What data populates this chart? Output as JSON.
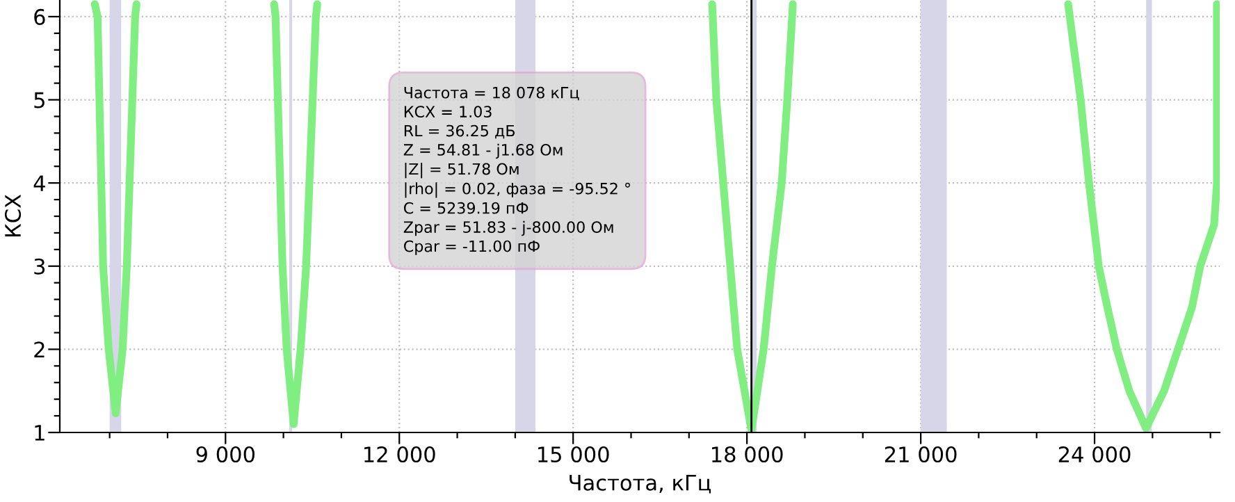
{
  "chart_data": {
    "type": "line",
    "xlabel": "Частота, кГц",
    "ylabel": "КСХ",
    "xlim": [
      6140,
      26160
    ],
    "ylim": [
      1,
      6.2
    ],
    "xticks": [
      {
        "value": 7000,
        "label": null
      },
      {
        "value": 8000,
        "label": null
      },
      {
        "value": 9000,
        "label": "9 000"
      },
      {
        "value": 10000,
        "label": null
      },
      {
        "value": 11000,
        "label": null
      },
      {
        "value": 12000,
        "label": "12 000"
      },
      {
        "value": 13000,
        "label": null
      },
      {
        "value": 14000,
        "label": null
      },
      {
        "value": 15000,
        "label": "15 000"
      },
      {
        "value": 16000,
        "label": null
      },
      {
        "value": 17000,
        "label": null
      },
      {
        "value": 18000,
        "label": "18 000"
      },
      {
        "value": 19000,
        "label": null
      },
      {
        "value": 20000,
        "label": null
      },
      {
        "value": 21000,
        "label": "21 000"
      },
      {
        "value": 22000,
        "label": null
      },
      {
        "value": 23000,
        "label": null
      },
      {
        "value": 24000,
        "label": "24 000"
      },
      {
        "value": 25000,
        "label": null
      },
      {
        "value": 26000,
        "label": null
      }
    ],
    "yticks": [
      1,
      {
        "value": 1.2,
        "label": null
      },
      {
        "value": 1.4,
        "label": null
      },
      {
        "value": 1.6,
        "label": null
      },
      {
        "value": 1.8,
        "label": null
      },
      2,
      {
        "value": 2.2,
        "label": null
      },
      {
        "value": 2.4,
        "label": null
      },
      {
        "value": 2.6,
        "label": null
      },
      {
        "value": 2.8,
        "label": null
      },
      3,
      {
        "value": 3.2,
        "label": null
      },
      {
        "value": 3.4,
        "label": null
      },
      {
        "value": 3.6,
        "label": null
      },
      {
        "value": 3.8,
        "label": null
      },
      4,
      {
        "value": 4.2,
        "label": null
      },
      {
        "value": 4.4,
        "label": null
      },
      {
        "value": 4.6,
        "label": null
      },
      {
        "value": 4.8,
        "label": null
      },
      5,
      {
        "value": 5.2,
        "label": null
      },
      {
        "value": 5.4,
        "label": null
      },
      {
        "value": 5.6,
        "label": null
      },
      {
        "value": 5.8,
        "label": null
      },
      6
    ],
    "grid": true,
    "line_style": "solid",
    "series": [
      {
        "color": "#80ee80",
        "x": [
          6744,
          6792,
          6888,
          6984,
          7104,
          7224,
          7296,
          7440,
          7464,
          7470,
          9840,
          9864,
          9984,
          10056,
          10176,
          10296,
          10392,
          10560,
          10584,
          10590,
          17400,
          17472,
          17712,
          17832,
          18078,
          18288,
          18432,
          18600,
          18696,
          18792,
          18800,
          23544,
          23760,
          23904,
          24072,
          24192,
          24384,
          24600,
          24888,
          25200,
          25440,
          25680,
          25824,
          26064,
          26112,
          26112
        ],
        "values": [
          6.15,
          6,
          3,
          2,
          1.23,
          2,
          3,
          6,
          6.15,
          null,
          6.15,
          6,
          3,
          2,
          1.1,
          2,
          3,
          6,
          6.15,
          null,
          6.15,
          5,
          3,
          2,
          1.03,
          2,
          3,
          4,
          5,
          6.15,
          null,
          6.15,
          5,
          4,
          3,
          2.6,
          2,
          1.5,
          1.05,
          1.5,
          2,
          2.5,
          3,
          3.5,
          4,
          6.15
        ]
      }
    ],
    "bands": [
      {
        "axis": "x",
        "from": 7000,
        "to": 7200,
        "color": "#d6d6e8"
      },
      {
        "axis": "x",
        "from": 10100,
        "to": 10150,
        "color": "#d6d6e8"
      },
      {
        "axis": "x",
        "from": 14000,
        "to": 14350,
        "color": "#d6d6e8"
      },
      {
        "axis": "x",
        "from": 18068,
        "to": 18168,
        "color": "#d6d6e8"
      },
      {
        "axis": "x",
        "from": 21000,
        "to": 21450,
        "color": "#d6d6e8"
      },
      {
        "axis": "x",
        "from": 24890,
        "to": 24990,
        "color": "#d6d6e8"
      }
    ],
    "ref_lines": [
      {
        "axis": "x",
        "value": 18078,
        "color": "#000000"
      }
    ],
    "annotations": [
      "Частота = 18 078 кГц\nКСХ = 1.03\nRL = 36.25 дБ\nZ = 54.81 - j1.68 Ом\n|Z| = 51.78 Ом\n|rho| = 0.02, фаза = -95.52 °\nC = 5239.19 пФ\nZpar = 51.83 - j-800.00 Ом\nCpar = -11.00 пФ"
    ]
  }
}
